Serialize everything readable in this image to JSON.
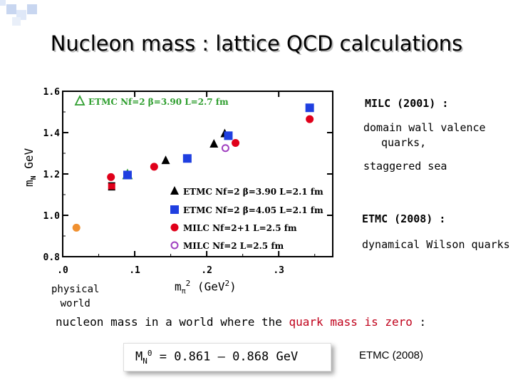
{
  "slide": {
    "title": "Nucleon mass : lattice QCD calculations",
    "milc_heading": "MILC (2001) :",
    "milc_line1": "domain wall valence",
    "milc_line2": "quarks,",
    "milc_line3": "staggered sea",
    "etmc_heading": "ETMC (2008) :",
    "etmc_line1": "dynamical Wilson quarks",
    "physical_line1": "physical",
    "physical_line2": "world",
    "bottom_part1": "nucleon mass in a world where the ",
    "bottom_red": "quark mass is zero",
    "bottom_part2": " :",
    "result": "MN0 = 0.861 – 0.868 GeV",
    "result_source": "ETMC (2008)",
    "accent_red": "#c0001a"
  },
  "chart_data": {
    "type": "scatter",
    "xlabel": "mπ² (GeV²)",
    "ylabel": "mN GeV",
    "xlim": [
      0.0,
      0.375
    ],
    "ylim": [
      0.8,
      1.6
    ],
    "x_ticks": [
      ".0",
      ".1",
      ".2",
      ".3"
    ],
    "y_ticks": [
      "0.8",
      "1.0",
      "1.2",
      "1.4",
      "1.6"
    ],
    "series": [
      {
        "name": "ETMC Nf=2 β=3.90 L=2.7 fm",
        "marker": "open-triangle",
        "color": "#2e9e2e",
        "points": [
          [
            0.09,
            1.195
          ]
        ]
      },
      {
        "name": "ETMC Nf=2 β=3.90 L=2.1 fm",
        "marker": "filled-triangle",
        "color": "#000000",
        "points": [
          [
            0.143,
            1.265
          ],
          [
            0.21,
            1.345
          ],
          [
            0.225,
            1.395
          ]
        ]
      },
      {
        "name": "ETMC Nf=2 β=4.05 L=2.1 fm",
        "marker": "filled-square",
        "color": "#1f3fe0",
        "points": [
          [
            0.09,
            1.195
          ],
          [
            0.173,
            1.275
          ],
          [
            0.23,
            1.385
          ],
          [
            0.343,
            1.52
          ]
        ]
      },
      {
        "name": "MILC Nf=2+1 L=2.5 fm",
        "marker": "filled-circle",
        "color": "#e0001a",
        "points": [
          [
            0.067,
            1.185
          ],
          [
            0.127,
            1.235
          ],
          [
            0.24,
            1.35
          ],
          [
            0.343,
            1.465
          ]
        ]
      },
      {
        "name": "MILC Nf=2 L=2.5 fm",
        "marker": "open-circle",
        "color": "#a040c0",
        "points": [
          [
            0.226,
            1.325
          ]
        ]
      },
      {
        "name": "physical world",
        "marker": "filled-circle",
        "color": "#f09030",
        "points": [
          [
            0.019,
            0.94
          ]
        ]
      }
    ],
    "red_bar_point": [
      0.068,
      1.14
    ],
    "grid": false
  }
}
